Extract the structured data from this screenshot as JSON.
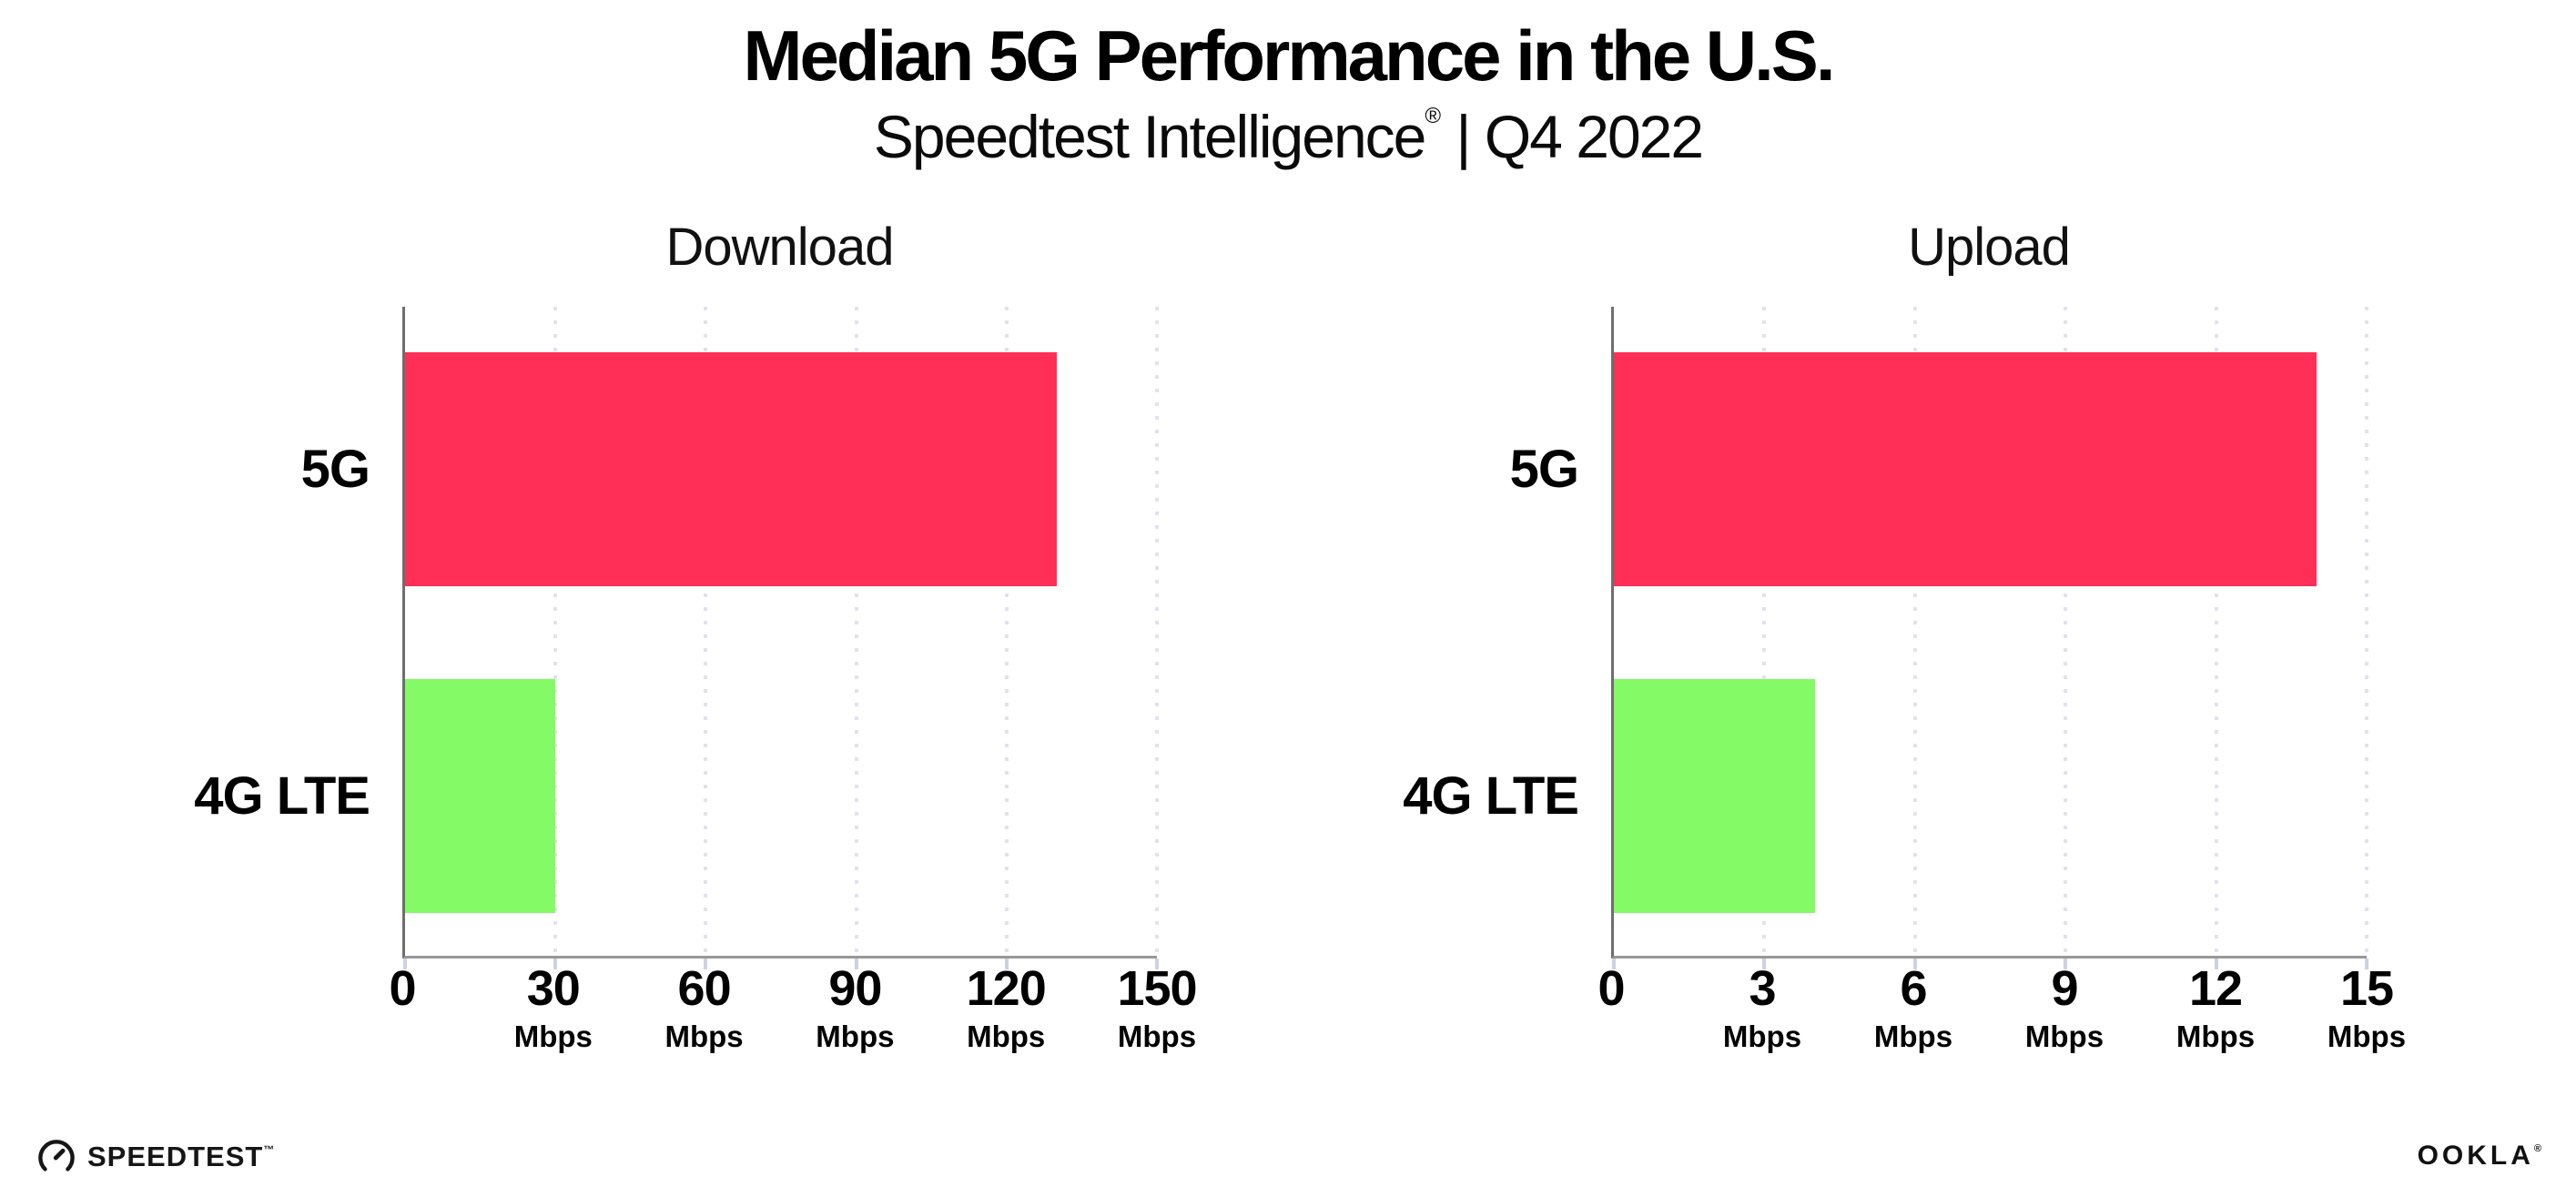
{
  "header": {
    "title": "Median 5G Performance in the U.S.",
    "subtitle_brand": "Speedtest Intelligence",
    "subtitle_mark": "®",
    "subtitle_period": " | Q4 2022"
  },
  "footer": {
    "speedtest_label": "SPEEDTEST",
    "speedtest_mark": "™",
    "ookla_label": "OOKLA",
    "ookla_mark": "®"
  },
  "colors": {
    "bar_5g_pink": "#ff2f57",
    "bar_4g_green": "#84fb66",
    "axis_line": "#989898",
    "grid_dot": "#e2e2ec",
    "text": "#000000"
  },
  "chart_data": [
    {
      "type": "bar",
      "orientation": "horizontal",
      "title": "Download",
      "categories": [
        "5G",
        "4G LTE"
      ],
      "values": [
        130,
        30
      ],
      "unit": "Mbps",
      "xlim": [
        0,
        150
      ],
      "xticks": [
        0,
        30,
        60,
        90,
        120,
        150
      ],
      "bar_colors": [
        "#ff2f57",
        "#84fb66"
      ],
      "grid": "dotted-vertical",
      "legend": "none"
    },
    {
      "type": "bar",
      "orientation": "horizontal",
      "title": "Upload",
      "categories": [
        "5G",
        "4G LTE"
      ],
      "values": [
        14,
        4
      ],
      "unit": "Mbps",
      "xlim": [
        0,
        15
      ],
      "xticks": [
        0,
        3,
        6,
        9,
        12,
        15
      ],
      "bar_colors": [
        "#ff2f57",
        "#84fb66"
      ],
      "grid": "dotted-vertical",
      "legend": "none"
    }
  ]
}
